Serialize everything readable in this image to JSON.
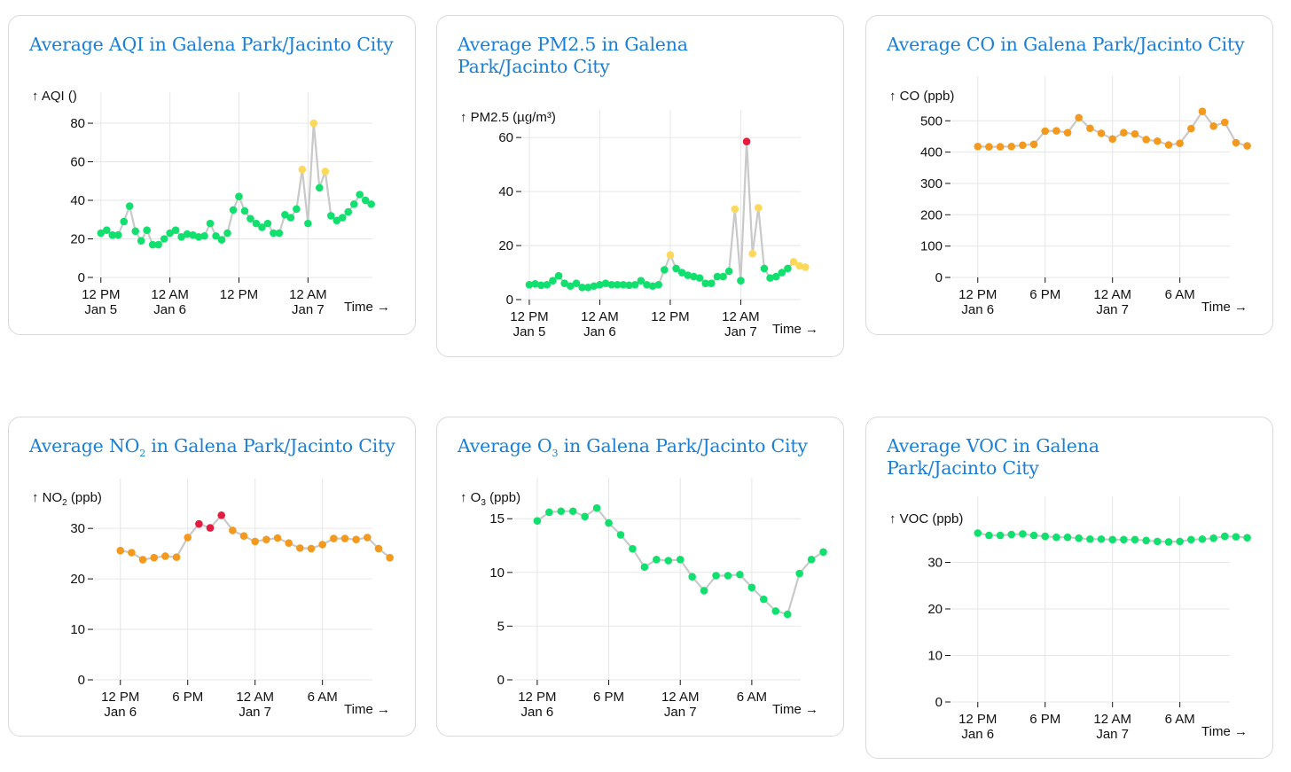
{
  "chart_data": [
    {
      "id": "aqi",
      "type": "line",
      "title": "Average AQI in Galena Park/Jacinto City",
      "ylabel_parts": [
        "↑ AQI ()"
      ],
      "xlabel": "Time →",
      "ylim": [
        0,
        86
      ],
      "yticks": [
        0,
        20,
        40,
        60,
        80
      ],
      "xrange": [
        -1.2,
        47.2
      ],
      "xticks": [
        {
          "x": 0,
          "l1": "12 PM",
          "l2": "Jan 5"
        },
        {
          "x": 12,
          "l1": "12 AM",
          "l2": "Jan 6"
        },
        {
          "x": 24,
          "l1": "12 PM",
          "l2": ""
        },
        {
          "x": 36,
          "l1": "12 AM",
          "l2": "Jan 7"
        }
      ],
      "values": [
        23,
        24.5,
        22,
        22,
        29,
        37,
        24,
        19,
        24.5,
        17,
        17,
        20,
        23,
        24.5,
        21,
        22.5,
        22,
        21,
        21.5,
        28,
        21.5,
        19.5,
        23,
        35,
        42,
        34.5,
        30.5,
        28,
        26,
        28,
        23,
        23,
        32.5,
        31,
        35.5,
        56,
        28,
        80,
        46.5,
        55,
        32,
        29.5,
        31,
        34,
        38,
        43,
        40,
        38
      ]
    },
    {
      "id": "pm25",
      "type": "line",
      "title": "Average PM2.5 in Galena Park/Jacinto City",
      "ylabel_parts": [
        "↑ PM2.5 (µg/m³)"
      ],
      "xlabel": "Time →",
      "ylim": [
        0,
        63
      ],
      "yticks": [
        0,
        20,
        40,
        60
      ],
      "xrange": [
        -1.2,
        46.2
      ],
      "xticks": [
        {
          "x": 0,
          "l1": "12 PM",
          "l2": "Jan 5"
        },
        {
          "x": 12,
          "l1": "12 AM",
          "l2": "Jan 6"
        },
        {
          "x": 24,
          "l1": "12 PM",
          "l2": ""
        },
        {
          "x": 36,
          "l1": "12 AM",
          "l2": "Jan 7"
        }
      ],
      "values": [
        5.5,
        5.8,
        5.3,
        5.5,
        7,
        8.8,
        6,
        5,
        6,
        4.5,
        4.5,
        5,
        5.5,
        6,
        5.5,
        5.5,
        5.5,
        5.3,
        5.5,
        7,
        5.5,
        5,
        5.5,
        11,
        16.5,
        11.5,
        10,
        9,
        8.5,
        8,
        6,
        6,
        8.5,
        8.5,
        10.5,
        33.5,
        7,
        58.5,
        17,
        34,
        11.5,
        8,
        8.5,
        10,
        11.5,
        14,
        12.5,
        12
      ]
    },
    {
      "id": "co",
      "type": "line",
      "title": "Average CO in Galena Park/Jacinto City",
      "ylabel_parts": [
        "↑ CO (ppb)"
      ],
      "xlabel": "Time →",
      "ylim": [
        0,
        580
      ],
      "yticks": [
        0,
        100,
        200,
        300,
        400,
        500
      ],
      "xrange": [
        -2.35,
        22.45
      ],
      "xticks": [
        {
          "x": 0,
          "l1": "12 PM",
          "l2": "Jan 6"
        },
        {
          "x": 6,
          "l1": "6 PM",
          "l2": ""
        },
        {
          "x": 12,
          "l1": "12 AM",
          "l2": "Jan 7"
        },
        {
          "x": 18,
          "l1": "6 AM",
          "l2": ""
        }
      ],
      "values": [
        418,
        417,
        417,
        418,
        422,
        425,
        467,
        468,
        462,
        510,
        476,
        460,
        442,
        462,
        458,
        440,
        435,
        423,
        428,
        475,
        530,
        483,
        495,
        430,
        420
      ]
    },
    {
      "id": "no2",
      "type": "line",
      "title_parts": [
        "Average NO",
        "2",
        " in Galena Park/Jacinto City"
      ],
      "ylabel_parts": [
        "↑ NO",
        "2",
        " (ppb)"
      ],
      "xlabel": "Time →",
      "ylim": [
        0,
        36
      ],
      "yticks": [
        0,
        10,
        20,
        30
      ],
      "xrange": [
        -2.35,
        22.45
      ],
      "xticks": [
        {
          "x": 0,
          "l1": "12 PM",
          "l2": "Jan 6"
        },
        {
          "x": 6,
          "l1": "6 PM",
          "l2": ""
        },
        {
          "x": 12,
          "l1": "12 AM",
          "l2": "Jan 7"
        },
        {
          "x": 18,
          "l1": "6 AM",
          "l2": ""
        }
      ],
      "values": [
        25.6,
        25.2,
        23.8,
        24.2,
        24.5,
        24.3,
        28.2,
        30.9,
        30.1,
        32.6,
        29.6,
        28.5,
        27.4,
        27.8,
        28.1,
        27.1,
        26.1,
        26,
        26.8,
        28,
        28,
        27.8,
        28.2,
        26,
        24.2
      ]
    },
    {
      "id": "o3",
      "type": "line",
      "title_parts": [
        "Average O",
        "3",
        " in Galena Park/Jacinto City"
      ],
      "ylabel_parts": [
        "↑ O",
        "3",
        " (ppb)"
      ],
      "xlabel": "Time →",
      "ylim": [
        0,
        17
      ],
      "yticks": [
        0,
        5,
        10,
        15
      ],
      "xrange": [
        -2,
        22.1
      ],
      "xticks": [
        {
          "x": 0,
          "l1": "12 PM",
          "l2": "Jan 6"
        },
        {
          "x": 6,
          "l1": "6 PM",
          "l2": ""
        },
        {
          "x": 12,
          "l1": "12 AM",
          "l2": "Jan 7"
        },
        {
          "x": 18,
          "l1": "6 AM",
          "l2": ""
        }
      ],
      "values": [
        14.8,
        15.6,
        15.7,
        15.7,
        15.2,
        16,
        14.6,
        13.5,
        12.2,
        10.5,
        11.2,
        11.1,
        11.2,
        9.6,
        8.3,
        9.7,
        9.7,
        9.8,
        8.6,
        7.5,
        6.4,
        6.1,
        9.9,
        11.2,
        11.9
      ]
    },
    {
      "id": "voc",
      "type": "line",
      "title": "Average VOC in Galena Park/Jacinto City",
      "ylabel_parts": [
        "↑ VOC (ppb)"
      ],
      "xlabel": "Time →",
      "ylim": [
        0,
        40
      ],
      "yticks": [
        0,
        10,
        20,
        30
      ],
      "xrange": [
        -2.35,
        22.45
      ],
      "xticks": [
        {
          "x": 0,
          "l1": "12 PM",
          "l2": "Jan 6"
        },
        {
          "x": 6,
          "l1": "6 PM",
          "l2": ""
        },
        {
          "x": 12,
          "l1": "12 AM",
          "l2": "Jan 7"
        },
        {
          "x": 18,
          "l1": "6 AM",
          "l2": ""
        }
      ],
      "values": [
        36.3,
        35.8,
        35.8,
        36,
        36.1,
        35.8,
        35.6,
        35.4,
        35.4,
        35.2,
        35,
        35,
        34.9,
        34.9,
        34.9,
        34.7,
        34.5,
        34.4,
        34.5,
        34.9,
        35,
        35.2,
        35.6,
        35.5,
        35.3
      ]
    }
  ],
  "colors": {
    "good": "#12e06e",
    "moderate": "#fdd85a",
    "usg": "#f39a1e",
    "unhealthy": "#e41d40",
    "title": "#1a7fd6",
    "line": "#c9c9c9"
  },
  "point_colors": {
    "aqi": {
      "moderate": [
        35,
        37,
        39
      ]
    },
    "pm25": {
      "moderate": [
        24,
        35,
        38,
        39,
        45,
        46,
        47
      ],
      "unhealthy": [
        37
      ]
    },
    "co": {
      "all": "usg"
    },
    "no2": {
      "all": "usg",
      "unhealthy": [
        7,
        8,
        9
      ]
    },
    "o3": {},
    "voc": {}
  }
}
